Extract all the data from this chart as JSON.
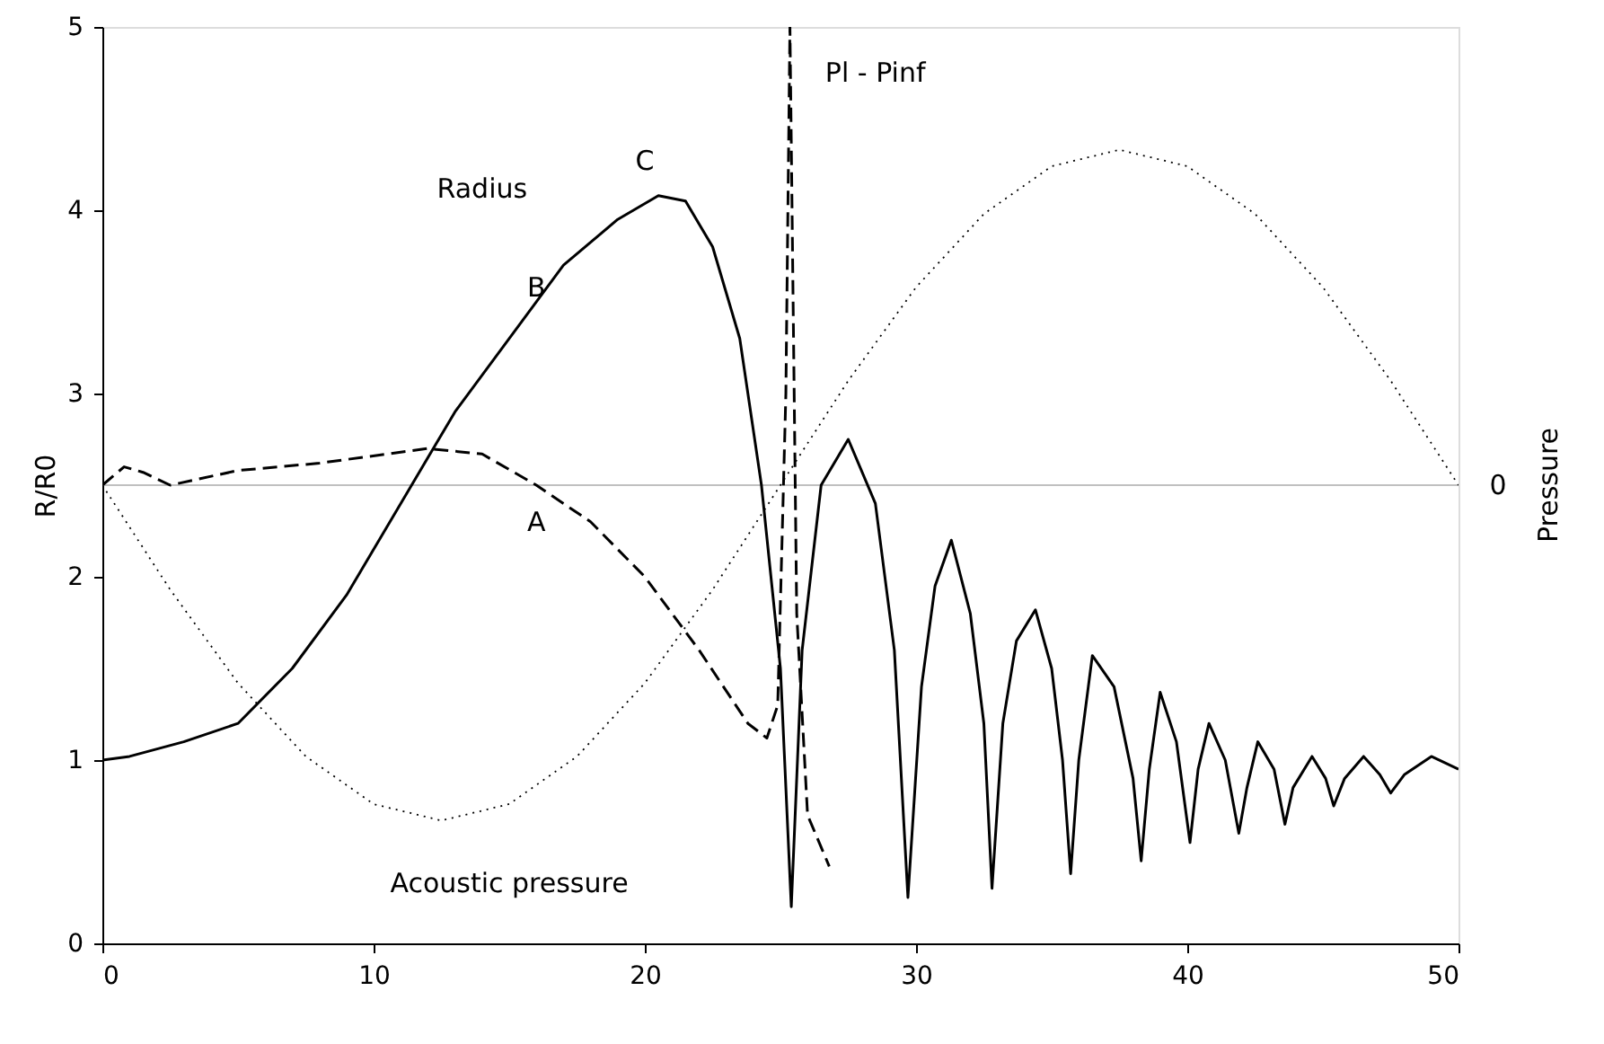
{
  "chart_data": {
    "type": "line",
    "xlabel": null,
    "ylabel": "R/R0",
    "y2label": "Pressure",
    "xlim": [
      0,
      50
    ],
    "xticks": [
      0,
      10,
      20,
      30,
      40,
      50
    ],
    "ylim": [
      0,
      5
    ],
    "yticks": [
      0,
      1,
      2,
      3,
      4,
      5
    ],
    "grid": false,
    "series": [
      {
        "color": "#000000",
        "line_style": "solid",
        "x": [
          0,
          1,
          3,
          5,
          7,
          9,
          11,
          13,
          15.5,
          17,
          19,
          20.5,
          21.5,
          22.5,
          23.5,
          24.3,
          25,
          25.4,
          25.8,
          26.5,
          27.5,
          28.5,
          29.2,
          29.7,
          30.2,
          30.7,
          31.3,
          32,
          32.5,
          32.8,
          33.2,
          33.7,
          34.4,
          35,
          35.4,
          35.7,
          36,
          36.5,
          37.3,
          38,
          38.3,
          38.6,
          39,
          39.6,
          40.1,
          40.4,
          40.8,
          41.4,
          41.9,
          42.2,
          42.6,
          43.2,
          43.6,
          43.9,
          44.6,
          45.1,
          45.4,
          45.8,
          46.5,
          47.1,
          47.5,
          48,
          49,
          50
        ],
        "values": [
          1.0,
          1.02,
          1.1,
          1.2,
          1.5,
          1.9,
          2.4,
          2.9,
          3.4,
          3.7,
          3.95,
          4.08,
          4.05,
          3.8,
          3.3,
          2.5,
          1.5,
          0.2,
          1.6,
          2.5,
          2.75,
          2.4,
          1.6,
          0.25,
          1.4,
          1.95,
          2.2,
          1.8,
          1.2,
          0.3,
          1.2,
          1.65,
          1.82,
          1.5,
          1.0,
          0.38,
          1.0,
          1.57,
          1.4,
          0.9,
          0.45,
          0.95,
          1.37,
          1.1,
          0.55,
          0.95,
          1.2,
          1.0,
          0.6,
          0.85,
          1.1,
          0.95,
          0.65,
          0.85,
          1.02,
          0.9,
          0.75,
          0.9,
          1.02,
          0.92,
          0.82,
          0.92,
          1.02,
          0.95
        ]
      },
      {
        "color": "#000000",
        "line_style": "dashed",
        "x": [
          0,
          0.8,
          1.5,
          2.5,
          5,
          8,
          12,
          14,
          16,
          18,
          20,
          22,
          23.8,
          24.5,
          24.9,
          25.2,
          25.35,
          25.6,
          26,
          26.8
        ],
        "values": [
          2.5,
          2.6,
          2.57,
          2.5,
          2.58,
          2.62,
          2.7,
          2.67,
          2.5,
          2.3,
          2.0,
          1.6,
          1.2,
          1.12,
          1.3,
          3.0,
          5.0,
          1.8,
          0.7,
          0.42
        ]
      },
      {
        "color": "#000000",
        "line_style": "dotted",
        "x": [
          0,
          2.5,
          5,
          7.5,
          10,
          12.5,
          15,
          17.5,
          20,
          22.5,
          25,
          27.5,
          30,
          32.5,
          35,
          37.5,
          40,
          42.5,
          45,
          47.5,
          50
        ],
        "values": [
          2.5,
          1.93,
          1.42,
          1.02,
          0.76,
          0.67,
          0.76,
          1.02,
          1.42,
          1.93,
          2.5,
          3.07,
          3.58,
          3.98,
          4.24,
          4.33,
          4.24,
          3.98,
          3.58,
          3.07,
          2.5
        ]
      }
    ],
    "ref_lines": [
      {
        "axis": "y",
        "value": 2.5,
        "color": "#c0c0c0"
      }
    ],
    "annotations": [
      "A",
      "B",
      "C",
      "Radius",
      "Acoustic pressure",
      "Pl - Pinf",
      "0"
    ]
  }
}
